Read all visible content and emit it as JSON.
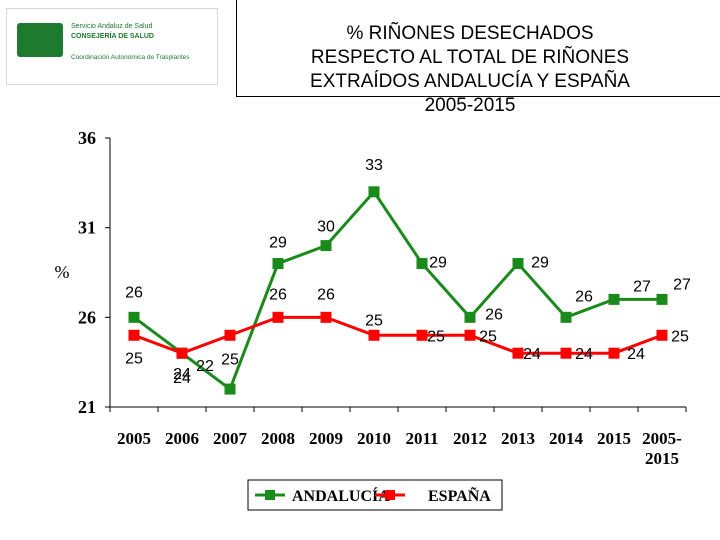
{
  "logo": {
    "line1": "Servicio Andaluz de Salud",
    "line2": "CONSEJERÍA DE SALUD",
    "line3": "Coordinación Autonómica de Trasplantes",
    "emblem": "junta-de-andalucia-emblem"
  },
  "chart_data": {
    "type": "line",
    "title_lines": [
      "% RIÑONES DESECHADOS",
      "RESPECTO AL TOTAL DE  RIÑONES",
      "EXTRAÍDOS ANDALUCÍA Y ESPAÑA",
      "2005-2015"
    ],
    "ylabel": "%",
    "ylim": [
      21,
      36
    ],
    "yticks": [
      "21",
      "26",
      "31",
      "36"
    ],
    "categories": [
      [
        "2005"
      ],
      [
        "2006"
      ],
      [
        "2007"
      ],
      [
        "2008"
      ],
      [
        "2009"
      ],
      [
        "2010"
      ],
      [
        "2011"
      ],
      [
        "2012"
      ],
      [
        "2013"
      ],
      [
        "2014"
      ],
      [
        "2015"
      ],
      [
        "2005-",
        "2015"
      ]
    ],
    "series": [
      {
        "name": "ANDALUCÍA",
        "color": "#1a8a1a",
        "values": [
          26,
          24,
          22,
          29,
          30,
          33,
          29,
          26,
          29,
          26,
          27,
          27
        ],
        "labels": [
          "26",
          "24",
          "22",
          "29",
          "30",
          "33",
          "29",
          "26",
          "29",
          "26",
          "27",
          "27"
        ]
      },
      {
        "name": "ESPAÑA",
        "color": "#ff0000",
        "values": [
          25,
          24,
          25,
          26,
          26,
          25,
          25,
          25,
          24,
          24,
          24,
          25
        ],
        "labels": [
          "25",
          "24",
          "25",
          "26",
          "26",
          "25",
          "25",
          "25",
          "24",
          "24",
          "24",
          "25"
        ]
      }
    ],
    "legend_position": "bottom-center",
    "grid": false
  }
}
